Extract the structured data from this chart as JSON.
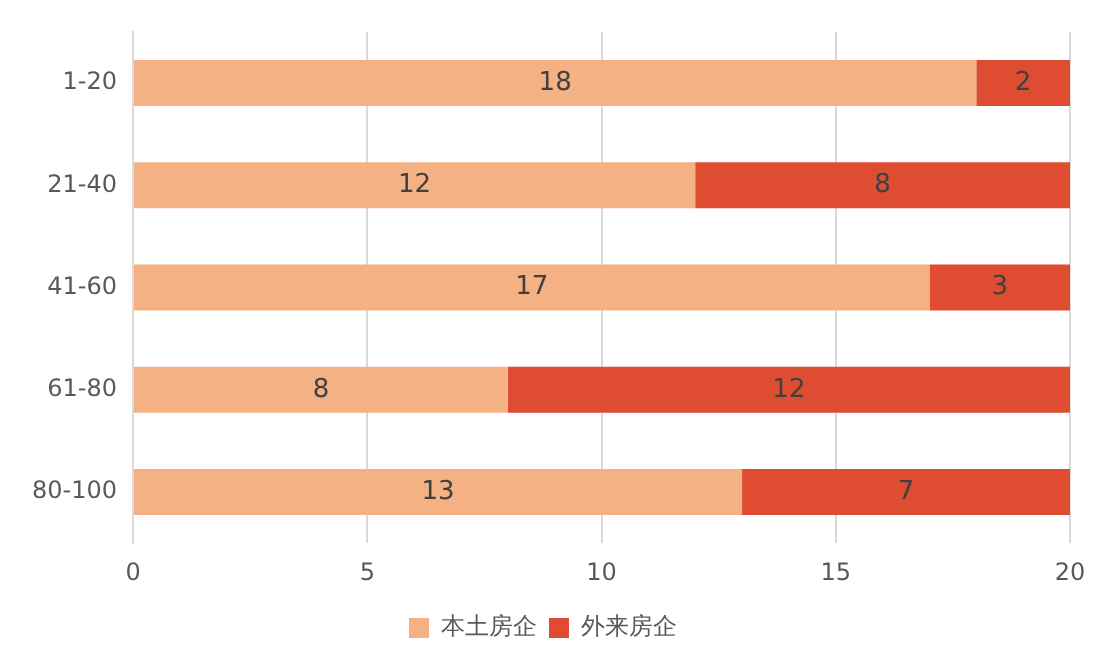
{
  "chart_data": {
    "type": "bar",
    "orientation": "horizontal",
    "stacked": true,
    "categories": [
      "1-20",
      "21-40",
      "41-60",
      "61-80",
      "80-100"
    ],
    "series": [
      {
        "name": "本土房企",
        "color": "#f4b183",
        "values": [
          18,
          12,
          17,
          8,
          13
        ]
      },
      {
        "name": "外来房企",
        "color": "#de4d32",
        "values": [
          2,
          8,
          3,
          12,
          7
        ]
      }
    ],
    "xlim": [
      0,
      20
    ],
    "xticks": [
      0,
      5,
      10,
      15,
      20
    ],
    "grid": "x",
    "legend": "bottom",
    "data_labels": true
  }
}
